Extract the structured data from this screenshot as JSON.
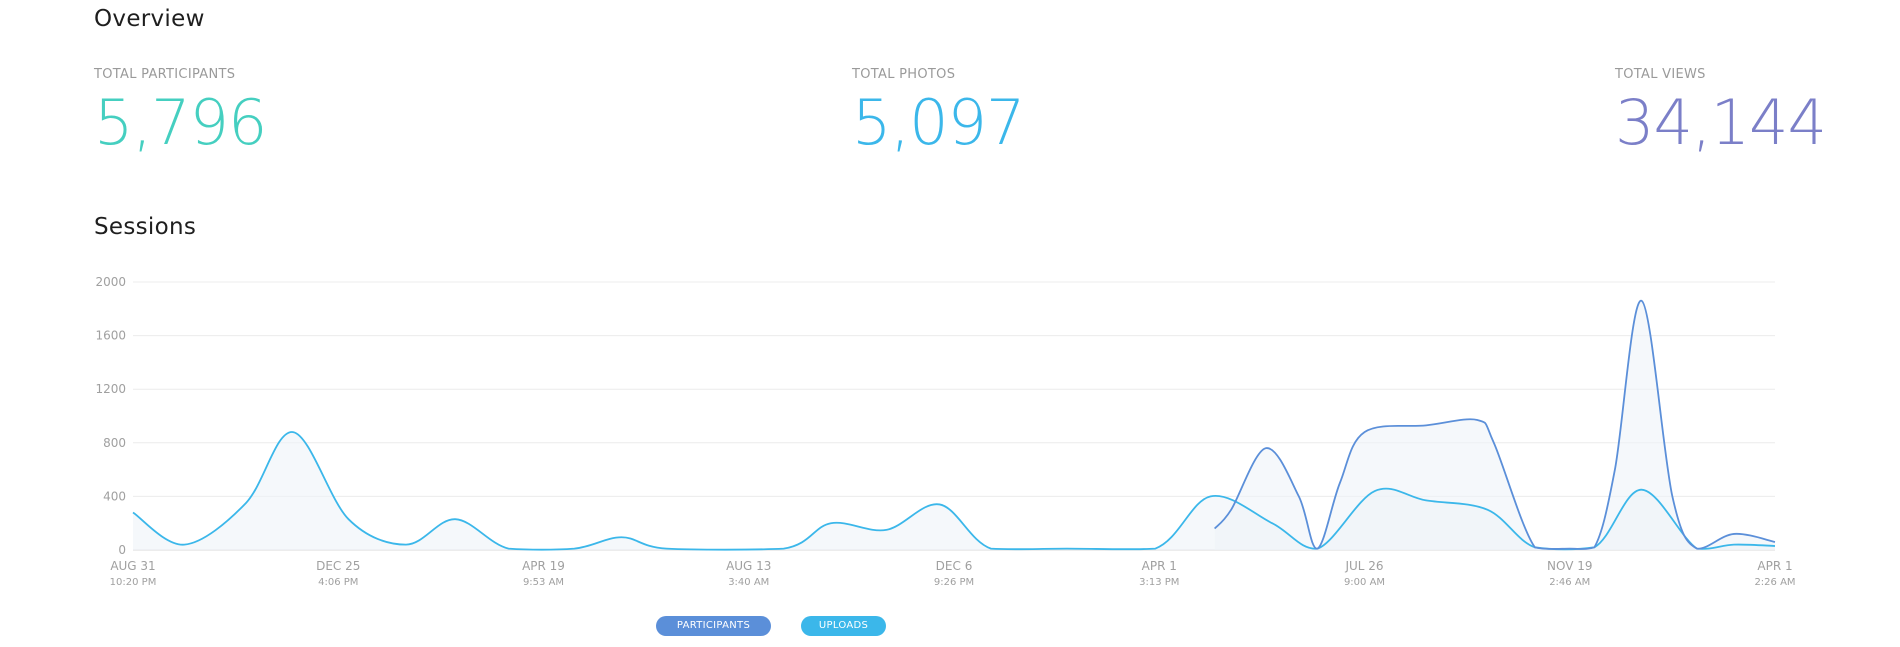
{
  "overview": {
    "title": "Overview"
  },
  "stats": [
    {
      "label": "TOTAL PARTICIPANTS",
      "value": "5,796",
      "color": "#45cfc0"
    },
    {
      "label": "TOTAL PHOTOS",
      "value": "5,097",
      "color": "#3bb7ea"
    },
    {
      "label": "TOTAL VIEWS",
      "value": "34,144",
      "color": "#7b7fc8"
    }
  ],
  "sessions": {
    "title": "Sessions"
  },
  "chart_data": {
    "type": "area",
    "title": "Sessions",
    "ylim": [
      0,
      2000
    ],
    "y_ticks": [
      0,
      400,
      800,
      1200,
      1600,
      2000
    ],
    "x_tick_labels": [
      {
        "date": "AUG 31",
        "time": "10:20 PM"
      },
      {
        "date": "DEC 25",
        "time": "4:06 PM"
      },
      {
        "date": "APR 19",
        "time": "9:53 AM"
      },
      {
        "date": "AUG 13",
        "time": "3:40 AM"
      },
      {
        "date": "DEC 6",
        "time": "9:26 PM"
      },
      {
        "date": "APR 1",
        "time": "3:13 PM"
      },
      {
        "date": "JUL 26",
        "time": "9:00 AM"
      },
      {
        "date": "NOV 19",
        "time": "2:46 AM"
      },
      {
        "date": "APR 1",
        "time": "2:26 AM"
      }
    ],
    "x_range": [
      0,
      8
    ],
    "series": [
      {
        "name": "PARTICIPANTS",
        "color": "#5b8fd9",
        "points": [
          [
            5.27,
            160
          ],
          [
            5.35,
            300
          ],
          [
            5.52,
            760
          ],
          [
            5.68,
            400
          ],
          [
            5.77,
            10
          ],
          [
            5.88,
            500
          ],
          [
            6.0,
            880
          ],
          [
            6.3,
            930
          ],
          [
            6.55,
            970
          ],
          [
            6.63,
            800
          ],
          [
            6.83,
            20
          ],
          [
            7.0,
            10
          ],
          [
            7.12,
            20
          ],
          [
            7.22,
            600
          ],
          [
            7.35,
            1860
          ],
          [
            7.5,
            400
          ],
          [
            7.62,
            10
          ],
          [
            7.8,
            120
          ],
          [
            8.0,
            60
          ]
        ]
      },
      {
        "name": "UPLOADS",
        "color": "#3bb7ea",
        "points": [
          [
            0.0,
            280
          ],
          [
            0.25,
            40
          ],
          [
            0.55,
            350
          ],
          [
            0.78,
            880
          ],
          [
            1.05,
            230
          ],
          [
            1.33,
            40
          ],
          [
            1.57,
            230
          ],
          [
            1.83,
            10
          ],
          [
            2.15,
            10
          ],
          [
            2.38,
            95
          ],
          [
            2.6,
            10
          ],
          [
            3.17,
            10
          ],
          [
            3.4,
            200
          ],
          [
            3.67,
            150
          ],
          [
            3.93,
            340
          ],
          [
            4.18,
            10
          ],
          [
            4.55,
            10
          ],
          [
            4.98,
            10
          ],
          [
            5.25,
            400
          ],
          [
            5.55,
            200
          ],
          [
            5.77,
            10
          ],
          [
            6.05,
            440
          ],
          [
            6.3,
            370
          ],
          [
            6.6,
            300
          ],
          [
            6.83,
            20
          ],
          [
            7.12,
            20
          ],
          [
            7.35,
            450
          ],
          [
            7.62,
            10
          ],
          [
            7.8,
            40
          ],
          [
            8.0,
            30
          ]
        ]
      }
    ],
    "legend": [
      "PARTICIPANTS",
      "UPLOADS"
    ]
  }
}
